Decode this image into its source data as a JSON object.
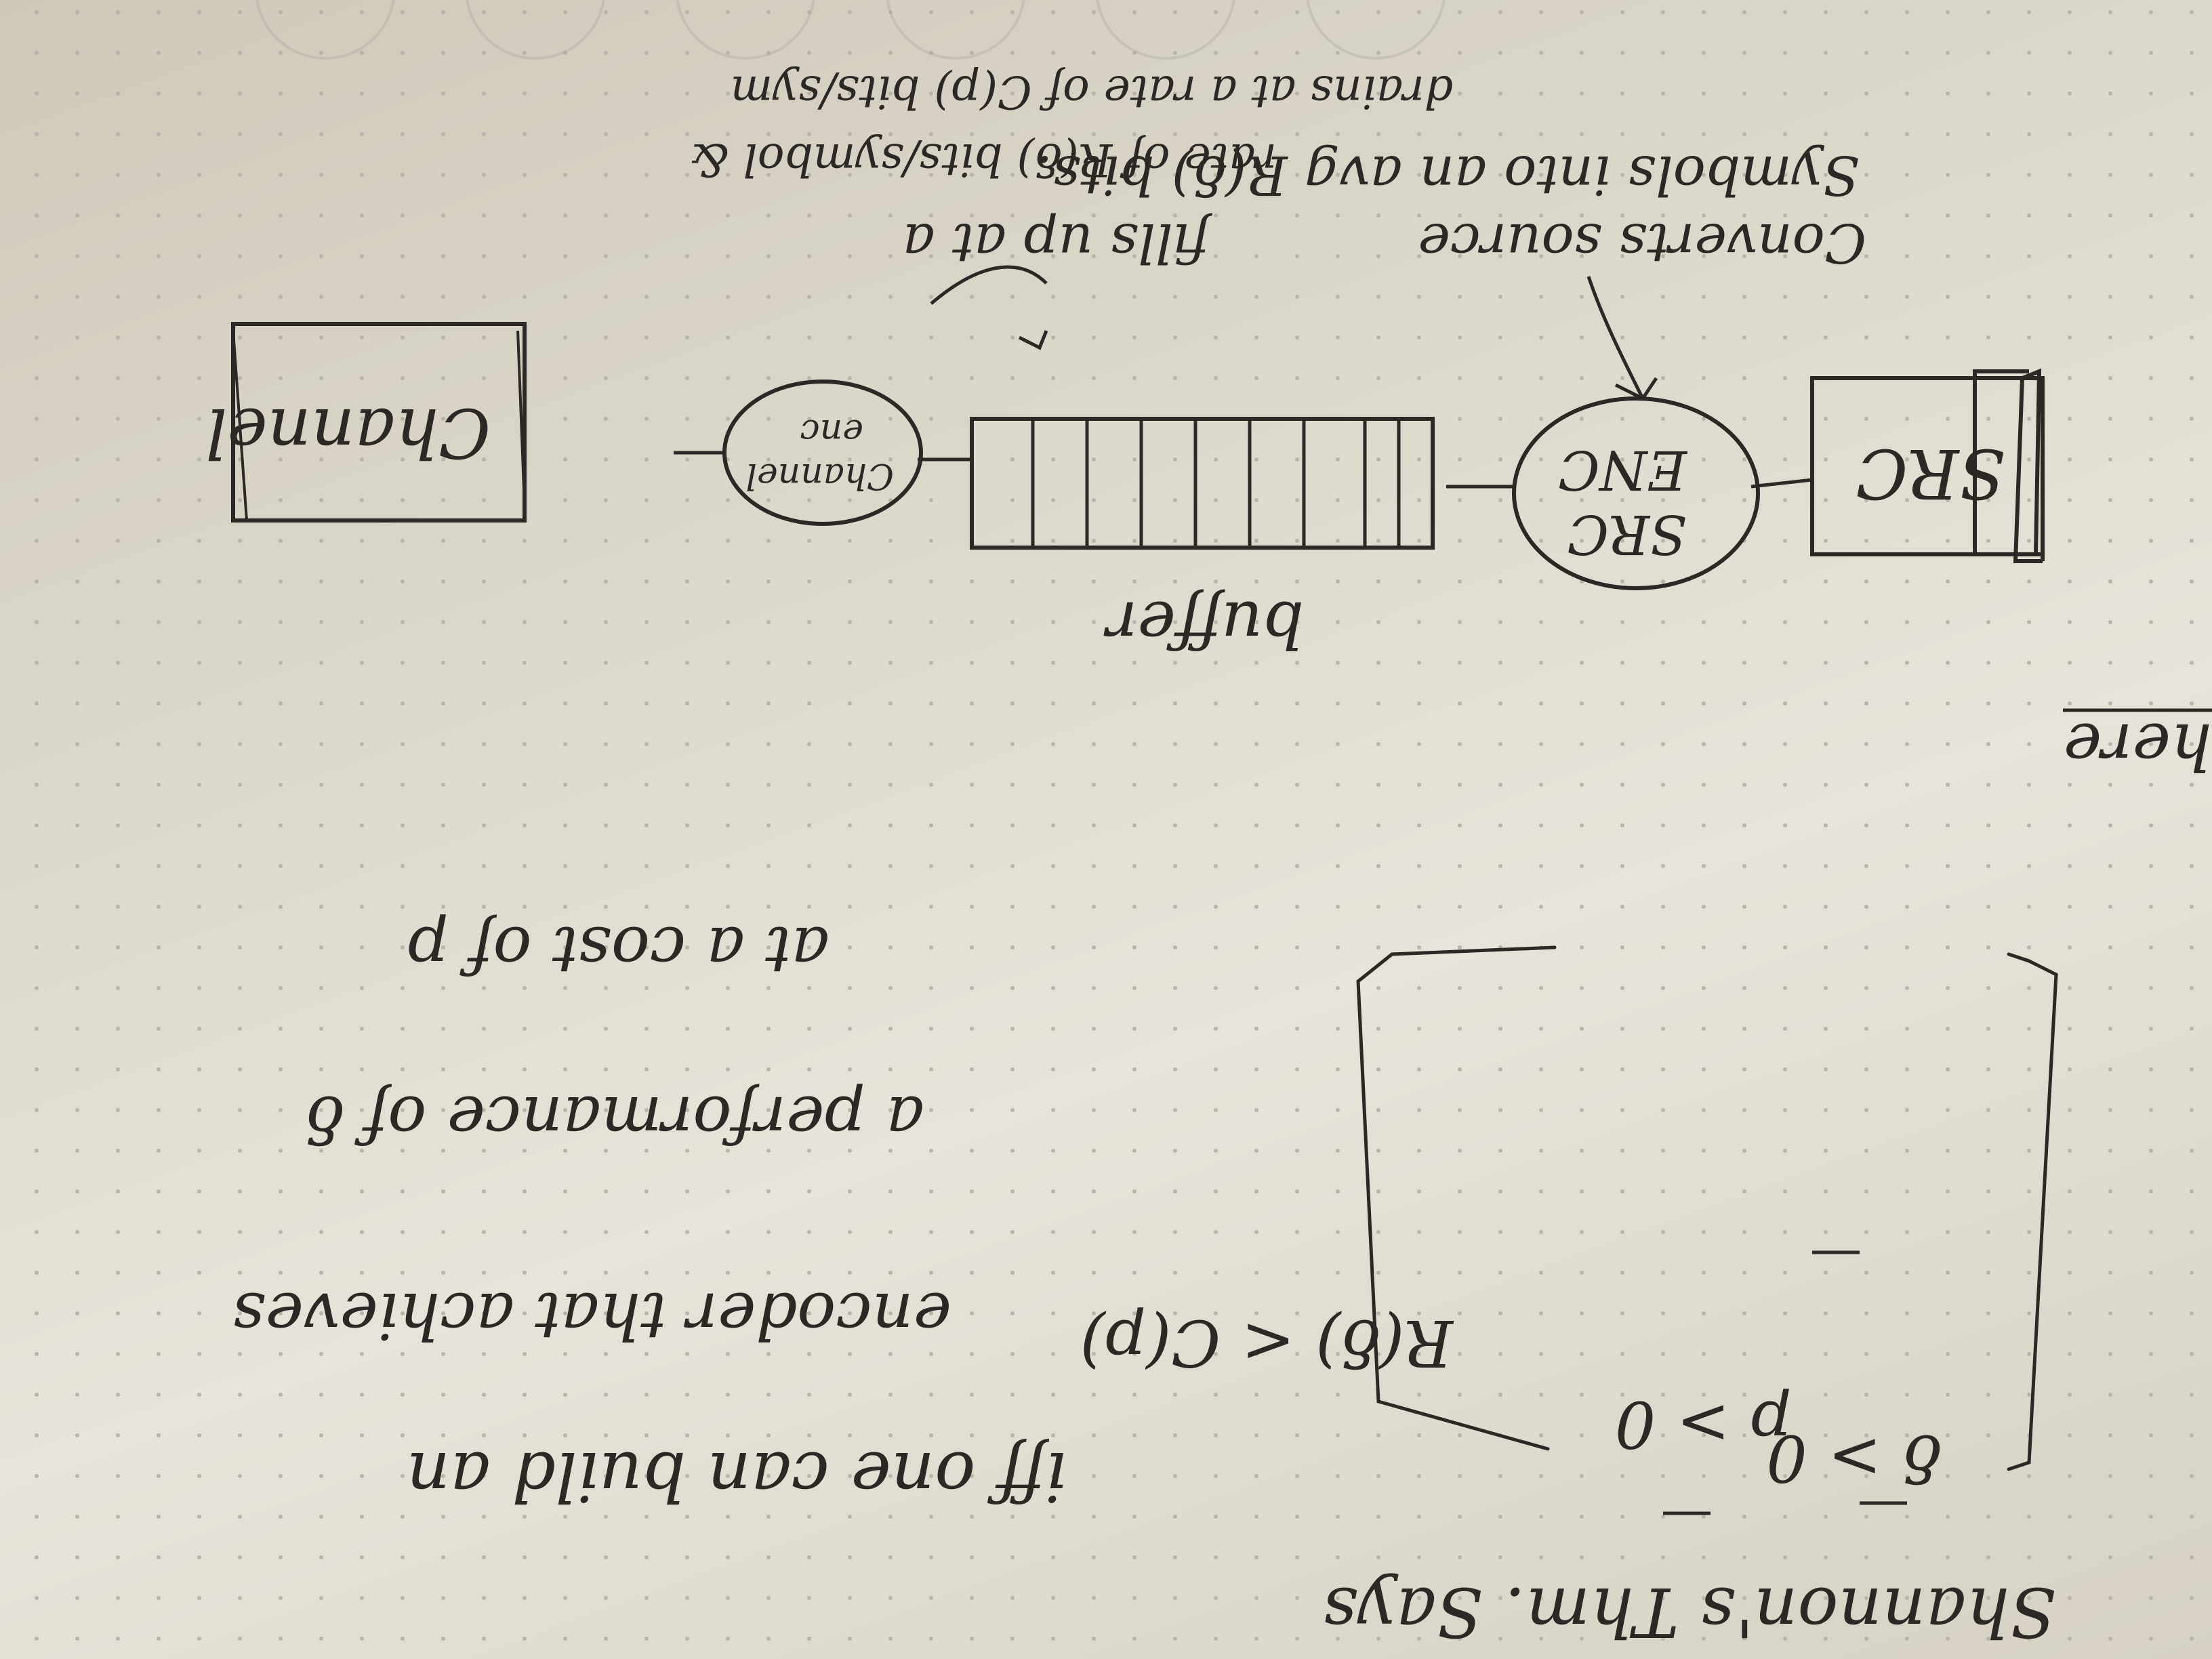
{
  "title": "Shannon's Thm. Says",
  "conditions": {
    "line1": "δ > 0",
    "line2": "p > 0",
    "line3": "R(δ) < C(p)"
  },
  "statement": {
    "line1": "iff one can build an",
    "line2": "encoder that achieves",
    "line3": "a performance of δ",
    "line4": "at a cost of p"
  },
  "margin_fragment": "here",
  "diagram": {
    "src": "SRC",
    "src_enc_line1": "SRC",
    "src_enc_line2": "ENC",
    "buffer_label": "buffer",
    "channel_enc_line1": "Channel",
    "channel_enc_line2": "enc",
    "channel": "Channel"
  },
  "notes": {
    "converts_line1": "Converts source",
    "converts_line2": "Symbols into an avg R(δ) bits.",
    "fills_line1": "fills up at a",
    "fills_line2": "rate of R(δ) bits/symbol &",
    "fills_line3": "drains at a rate of C(p) bits/sym"
  }
}
